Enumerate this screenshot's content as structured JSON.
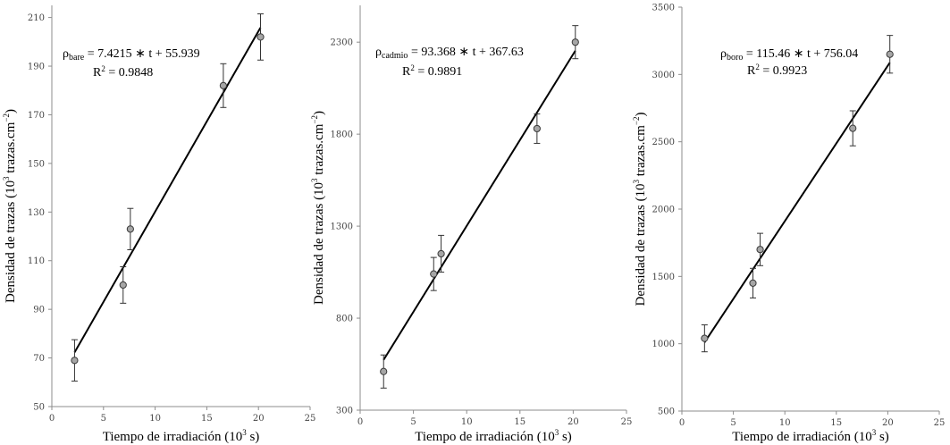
{
  "chart_data": [
    {
      "type": "scatter",
      "x_label": {
        "pre": "Tiempo de irradiación (10",
        "sup": "3",
        "post": " s)"
      },
      "y_label": {
        "pre": "Densidad de trazas (10",
        "sup": "3",
        "mid": " trazas.cm",
        "sup2": "−2",
        "post": ")"
      },
      "xlim": [
        0,
        25
      ],
      "ylim": [
        50,
        215
      ],
      "x_ticks": [
        0,
        5,
        10,
        15,
        20,
        25
      ],
      "y_ticks": [
        50,
        70,
        90,
        110,
        130,
        150,
        170,
        190,
        210
      ],
      "x": [
        2.2,
        6.9,
        7.6,
        16.6,
        20.2
      ],
      "y": [
        69,
        100,
        123,
        182,
        202
      ],
      "error": [
        8.5,
        7.5,
        8.5,
        9,
        9.5
      ],
      "trendline": {
        "slope": 7.4215,
        "intercept": 55.939,
        "x_range": [
          2.2,
          20.2
        ]
      },
      "equation": {
        "rho": "ρ",
        "sub": "bare",
        "rest": " = 7.4215 ∗ t + 55.939"
      },
      "r2": {
        "pre": "R",
        "sup": "2",
        "post": " = 0.9848"
      },
      "grid": false,
      "legend": "none"
    },
    {
      "type": "scatter",
      "x_label": {
        "pre": "Tiempo de irradiación (10",
        "sup": "3",
        "post": " s)"
      },
      "y_label": {
        "pre": "Densidad de trazas (10",
        "sup": "3",
        "mid": " trazas.cm",
        "sup2": "−2",
        "post": ")"
      },
      "xlim": [
        0,
        25
      ],
      "ylim": [
        300,
        2500
      ],
      "x_ticks": [
        0,
        5,
        10,
        15,
        20,
        25
      ],
      "y_ticks": [
        300,
        800,
        1300,
        1800,
        2300
      ],
      "x": [
        2.2,
        6.9,
        7.6,
        16.6,
        20.2
      ],
      "y": [
        510,
        1040,
        1150,
        1830,
        2300
      ],
      "error": [
        90,
        90,
        100,
        80,
        90
      ],
      "trendline": {
        "slope": 93.368,
        "intercept": 367.63,
        "x_range": [
          2.2,
          20.2
        ]
      },
      "equation": {
        "rho": "ρ",
        "sub": "cadmio",
        "rest": " = 93.368 ∗ t + 367.63"
      },
      "r2": {
        "pre": "R",
        "sup": "2",
        "post": " = 0.9891"
      },
      "grid": false,
      "legend": "none"
    },
    {
      "type": "scatter",
      "x_label": {
        "pre": "Tiempo de irradiación (10",
        "sup": "3",
        "post": " s)"
      },
      "y_label": {
        "pre": "Densidad de trazas (10",
        "sup": "3",
        "mid": " trazas.cm",
        "sup2": "−2",
        "post": ")"
      },
      "xlim": [
        0,
        25
      ],
      "ylim": [
        500,
        3500
      ],
      "x_ticks": [
        0,
        5,
        10,
        15,
        20,
        25
      ],
      "y_ticks": [
        500,
        1000,
        1500,
        2000,
        2500,
        3000,
        3500
      ],
      "x": [
        2.2,
        6.9,
        7.6,
        16.6,
        20.2
      ],
      "y": [
        1040,
        1450,
        1700,
        2600,
        3150
      ],
      "error": [
        100,
        110,
        120,
        130,
        140
      ],
      "trendline": {
        "slope": 115.46,
        "intercept": 756.04,
        "x_range": [
          2.2,
          20.2
        ]
      },
      "equation": {
        "rho": "ρ",
        "sub": "boro",
        "rest": " = 115.46 ∗ t + 756.04"
      },
      "r2": {
        "pre": "R",
        "sup": "2",
        "post": " = 0.9923"
      },
      "grid": false,
      "legend": "none"
    }
  ]
}
